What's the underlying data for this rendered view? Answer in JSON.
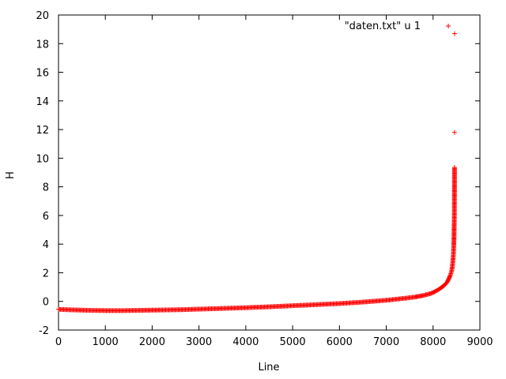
{
  "chart_data": {
    "type": "scatter",
    "title": "",
    "xlabel": "Line",
    "ylabel": "H",
    "xlim": [
      0,
      9000
    ],
    "ylim": [
      -2,
      20
    ],
    "xticks": [
      0,
      1000,
      2000,
      3000,
      4000,
      5000,
      6000,
      7000,
      8000,
      9000
    ],
    "yticks": [
      -2,
      0,
      2,
      4,
      6,
      8,
      10,
      12,
      14,
      16,
      18,
      20
    ],
    "grid": false,
    "legend": {
      "position": "top-right",
      "entries": [
        "\"daten.txt\" u 1"
      ]
    },
    "series": [
      {
        "name": "\"daten.txt\" u 1",
        "color": "#ff0000",
        "marker": "plus",
        "points": [
          [
            0,
            -0.55
          ],
          [
            200,
            -0.58
          ],
          [
            400,
            -0.6
          ],
          [
            600,
            -0.62
          ],
          [
            800,
            -0.63
          ],
          [
            1000,
            -0.64
          ],
          [
            1200,
            -0.64
          ],
          [
            1400,
            -0.64
          ],
          [
            1600,
            -0.63
          ],
          [
            1800,
            -0.62
          ],
          [
            2000,
            -0.61
          ],
          [
            2200,
            -0.6
          ],
          [
            2400,
            -0.59
          ],
          [
            2600,
            -0.58
          ],
          [
            2800,
            -0.56
          ],
          [
            3000,
            -0.54
          ],
          [
            3200,
            -0.52
          ],
          [
            3400,
            -0.5
          ],
          [
            3600,
            -0.48
          ],
          [
            3800,
            -0.46
          ],
          [
            4000,
            -0.44
          ],
          [
            4200,
            -0.41
          ],
          [
            4400,
            -0.39
          ],
          [
            4600,
            -0.36
          ],
          [
            4800,
            -0.33
          ],
          [
            5000,
            -0.3
          ],
          [
            5200,
            -0.27
          ],
          [
            5400,
            -0.24
          ],
          [
            5600,
            -0.21
          ],
          [
            5800,
            -0.18
          ],
          [
            6000,
            -0.15
          ],
          [
            6200,
            -0.11
          ],
          [
            6400,
            -0.07
          ],
          [
            6600,
            -0.02
          ],
          [
            6800,
            0.03
          ],
          [
            7000,
            0.08
          ],
          [
            7200,
            0.15
          ],
          [
            7400,
            0.22
          ],
          [
            7600,
            0.3
          ],
          [
            7800,
            0.42
          ],
          [
            7950,
            0.55
          ],
          [
            8050,
            0.7
          ],
          [
            8150,
            0.9
          ],
          [
            8250,
            1.15
          ],
          [
            8300,
            1.35
          ],
          [
            8340,
            1.6
          ],
          [
            8370,
            1.85
          ],
          [
            8395,
            2.1
          ],
          [
            8410,
            2.4
          ],
          [
            8420,
            2.7
          ],
          [
            8428,
            3.0
          ],
          [
            8434,
            3.3
          ],
          [
            8438,
            3.6
          ],
          [
            8442,
            3.9
          ],
          [
            8445,
            4.3
          ],
          [
            8448,
            4.7
          ],
          [
            8450,
            5.1
          ],
          [
            8452,
            5.5
          ],
          [
            8454,
            6.0
          ],
          [
            8455,
            6.5
          ],
          [
            8456,
            7.2
          ],
          [
            8457,
            8.0
          ],
          [
            8458,
            9.35
          ],
          [
            8459,
            11.8
          ],
          [
            8460,
            18.7
          ]
        ]
      }
    ]
  }
}
